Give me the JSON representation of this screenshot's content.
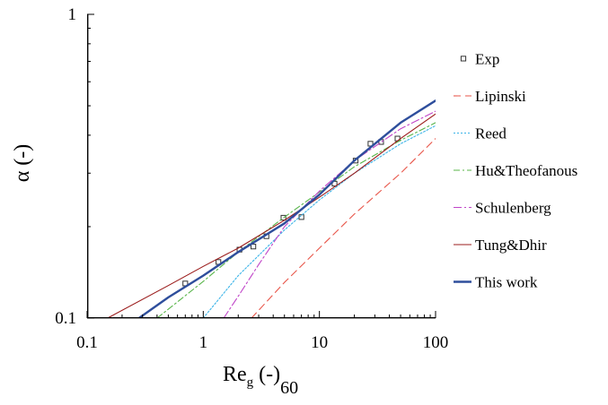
{
  "chart_data": {
    "type": "line",
    "xlabel": "Re",
    "xlabel_sub": "g",
    "xlabel_suffix": " (-)",
    "xlabel_tail": "60",
    "ylabel": "α (-)",
    "xscale": "log",
    "yscale": "log",
    "xlim": [
      0.1,
      100
    ],
    "ylim": [
      0.1,
      1
    ],
    "x_ticks": [
      "0.1",
      "1",
      "10",
      "100"
    ],
    "y_ticks": [
      "0.1",
      "1"
    ],
    "grid": false,
    "legend_position": "right",
    "series": [
      {
        "name": "Exp",
        "kind": "marker",
        "color": "#333333",
        "points": [
          [
            0.7,
            0.13
          ],
          [
            1.35,
            0.153
          ],
          [
            2.05,
            0.168
          ],
          [
            2.7,
            0.172
          ],
          [
            3.5,
            0.186
          ],
          [
            4.9,
            0.214
          ],
          [
            7.0,
            0.215
          ],
          [
            13.5,
            0.277
          ],
          [
            20.5,
            0.33
          ],
          [
            27.5,
            0.375
          ],
          [
            34.0,
            0.38
          ],
          [
            47.0,
            0.39
          ]
        ]
      },
      {
        "name": "Lipinski",
        "kind": "line",
        "color": "#e8564a",
        "dash": "8,5",
        "points": [
          [
            2.6,
            0.1
          ],
          [
            5,
            0.131
          ],
          [
            10,
            0.17
          ],
          [
            20,
            0.22
          ],
          [
            50,
            0.3
          ],
          [
            100,
            0.39
          ]
        ]
      },
      {
        "name": "Reed",
        "kind": "line",
        "color": "#3bb4e8",
        "dash": "2,2",
        "points": [
          [
            1.0,
            0.1
          ],
          [
            2,
            0.138
          ],
          [
            5,
            0.195
          ],
          [
            10,
            0.245
          ],
          [
            20,
            0.3
          ],
          [
            50,
            0.375
          ],
          [
            100,
            0.43
          ]
        ]
      },
      {
        "name": "Hu&Theofanous",
        "kind": "line",
        "color": "#59b54a",
        "dash": "7,3,2,3",
        "points": [
          [
            0.4,
            0.1
          ],
          [
            1,
            0.132
          ],
          [
            2,
            0.165
          ],
          [
            5,
            0.215
          ],
          [
            10,
            0.26
          ],
          [
            20,
            0.315
          ],
          [
            50,
            0.385
          ],
          [
            100,
            0.44
          ]
        ]
      },
      {
        "name": "Schulenberg",
        "kind": "line",
        "color": "#c045c8",
        "dash": "9,3,2,3",
        "points": [
          [
            1.5,
            0.1
          ],
          [
            2,
            0.118
          ],
          [
            3,
            0.15
          ],
          [
            5,
            0.2
          ],
          [
            10,
            0.262
          ],
          [
            20,
            0.33
          ],
          [
            50,
            0.42
          ],
          [
            100,
            0.48
          ]
        ]
      },
      {
        "name": "Tung&Dhir",
        "kind": "line",
        "color": "#9b1c1c",
        "dash": "",
        "points": [
          [
            0.15,
            0.1
          ],
          [
            0.5,
            0.128
          ],
          [
            1,
            0.148
          ],
          [
            2,
            0.17
          ],
          [
            5,
            0.21
          ],
          [
            10,
            0.25
          ],
          [
            20,
            0.3
          ],
          [
            50,
            0.39
          ],
          [
            100,
            0.47
          ]
        ]
      },
      {
        "name": "This work",
        "kind": "line",
        "color": "#2e4e9c",
        "dash": "",
        "width": 2.4,
        "points": [
          [
            0.28,
            0.1
          ],
          [
            0.5,
            0.117
          ],
          [
            1,
            0.138
          ],
          [
            2,
            0.165
          ],
          [
            5,
            0.205
          ],
          [
            10,
            0.255
          ],
          [
            20,
            0.33
          ],
          [
            50,
            0.44
          ],
          [
            100,
            0.52
          ]
        ]
      }
    ]
  }
}
